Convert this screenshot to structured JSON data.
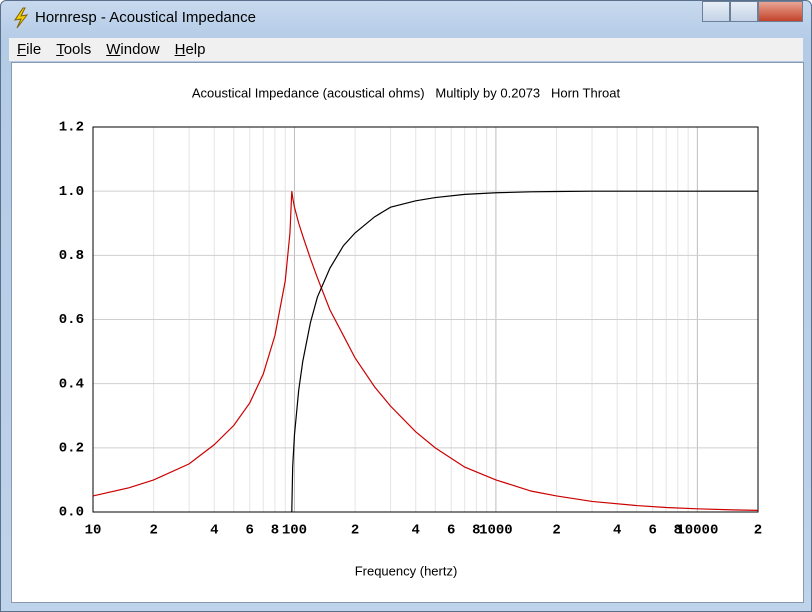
{
  "window": {
    "title": "Hornresp - Acoustical Impedance"
  },
  "menu": [
    "File",
    "Tools",
    "Window",
    "Help"
  ],
  "chart_data": {
    "type": "line",
    "title": "Acoustical Impedance (acoustical ohms)   Multiply by 0.2073   Horn Throat",
    "xlabel": "Frequency (hertz)",
    "xscale": "log",
    "x": [
      10,
      15,
      20,
      30,
      40,
      50,
      60,
      70,
      80,
      90,
      95,
      97,
      98,
      100,
      105,
      110,
      120,
      130,
      150,
      175,
      200,
      250,
      300,
      400,
      500,
      700,
      1000,
      1500,
      2000,
      3000,
      5000,
      7000,
      10000,
      15000,
      20000
    ],
    "series": [
      {
        "color": "#cc0000",
        "values": [
          0.05,
          0.075,
          0.1,
          0.15,
          0.21,
          0.27,
          0.34,
          0.43,
          0.55,
          0.72,
          0.87,
          1.0,
          0.98,
          0.95,
          0.9,
          0.86,
          0.79,
          0.73,
          0.63,
          0.55,
          0.48,
          0.39,
          0.33,
          0.25,
          0.2,
          0.14,
          0.1,
          0.065,
          0.05,
          0.033,
          0.02,
          0.014,
          0.01,
          0.0065,
          0.005
        ]
      },
      {
        "color": "#000000",
        "values": [
          null,
          null,
          null,
          null,
          null,
          null,
          null,
          null,
          null,
          null,
          null,
          0,
          0.14,
          0.24,
          0.38,
          0.47,
          0.59,
          0.67,
          0.76,
          0.83,
          0.87,
          0.92,
          0.95,
          0.97,
          0.98,
          0.99,
          0.995,
          0.998,
          0.999,
          1.0,
          1.0,
          1.0,
          1.0,
          1.0,
          1.0
        ]
      }
    ],
    "xlim": [
      10,
      20000
    ],
    "ylim": [
      0,
      1.2
    ],
    "xticks": [
      10,
      {
        "value": 20,
        "label": "2"
      },
      {
        "value": 40,
        "label": "4"
      },
      {
        "value": 60,
        "label": "6"
      },
      {
        "value": 80,
        "label": "8"
      },
      100,
      {
        "value": 200,
        "label": "2"
      },
      {
        "value": 400,
        "label": "4"
      },
      {
        "value": 600,
        "label": "6"
      },
      {
        "value": 800,
        "label": "8"
      },
      1000,
      {
        "value": 2000,
        "label": "2"
      },
      {
        "value": 4000,
        "label": "4"
      },
      {
        "value": 6000,
        "label": "6"
      },
      {
        "value": 8000,
        "label": "8"
      },
      10000,
      {
        "value": 20000,
        "label": "2"
      }
    ],
    "xminor": [
      30,
      50,
      70,
      90,
      300,
      500,
      700,
      900,
      3000,
      5000,
      7000,
      9000
    ],
    "yticks": [
      {
        "value": 0,
        "label": "0.0"
      },
      0.2,
      0.4,
      0.6,
      0.8,
      {
        "value": 1,
        "label": "1.0"
      },
      1.2
    ],
    "grid": true
  }
}
